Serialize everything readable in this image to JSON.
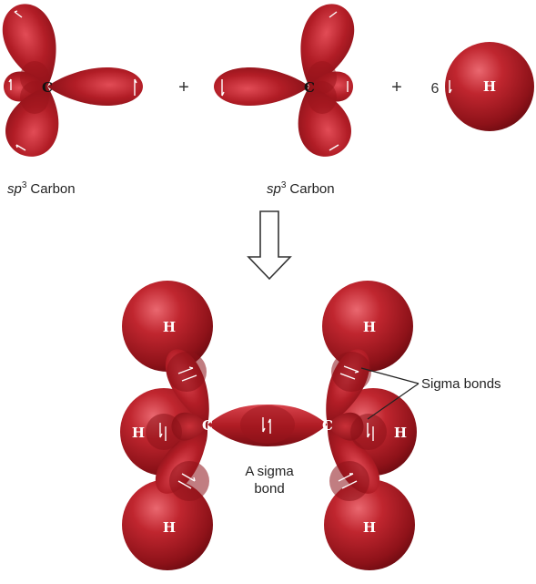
{
  "labels": {
    "carbon_symbol": "C",
    "hydrogen_symbol": "H",
    "plus": "+",
    "hydrogen_count": "6",
    "sp3_left": {
      "prefix": "sp",
      "sup": "3",
      "suffix": "Carbon"
    },
    "sp3_right": {
      "prefix": "sp",
      "sup": "3",
      "suffix": "Carbon"
    },
    "sigma_bonds": "Sigma bonds",
    "a_sigma_bond_line1": "A sigma",
    "a_sigma_bond_line2": "bond"
  },
  "colors": {
    "orbital_dark": "#7a0d14",
    "orbital_mid": "#b01c24",
    "orbital_light": "#e0505a",
    "text": "#222222",
    "arrow_stroke": "#333333"
  }
}
